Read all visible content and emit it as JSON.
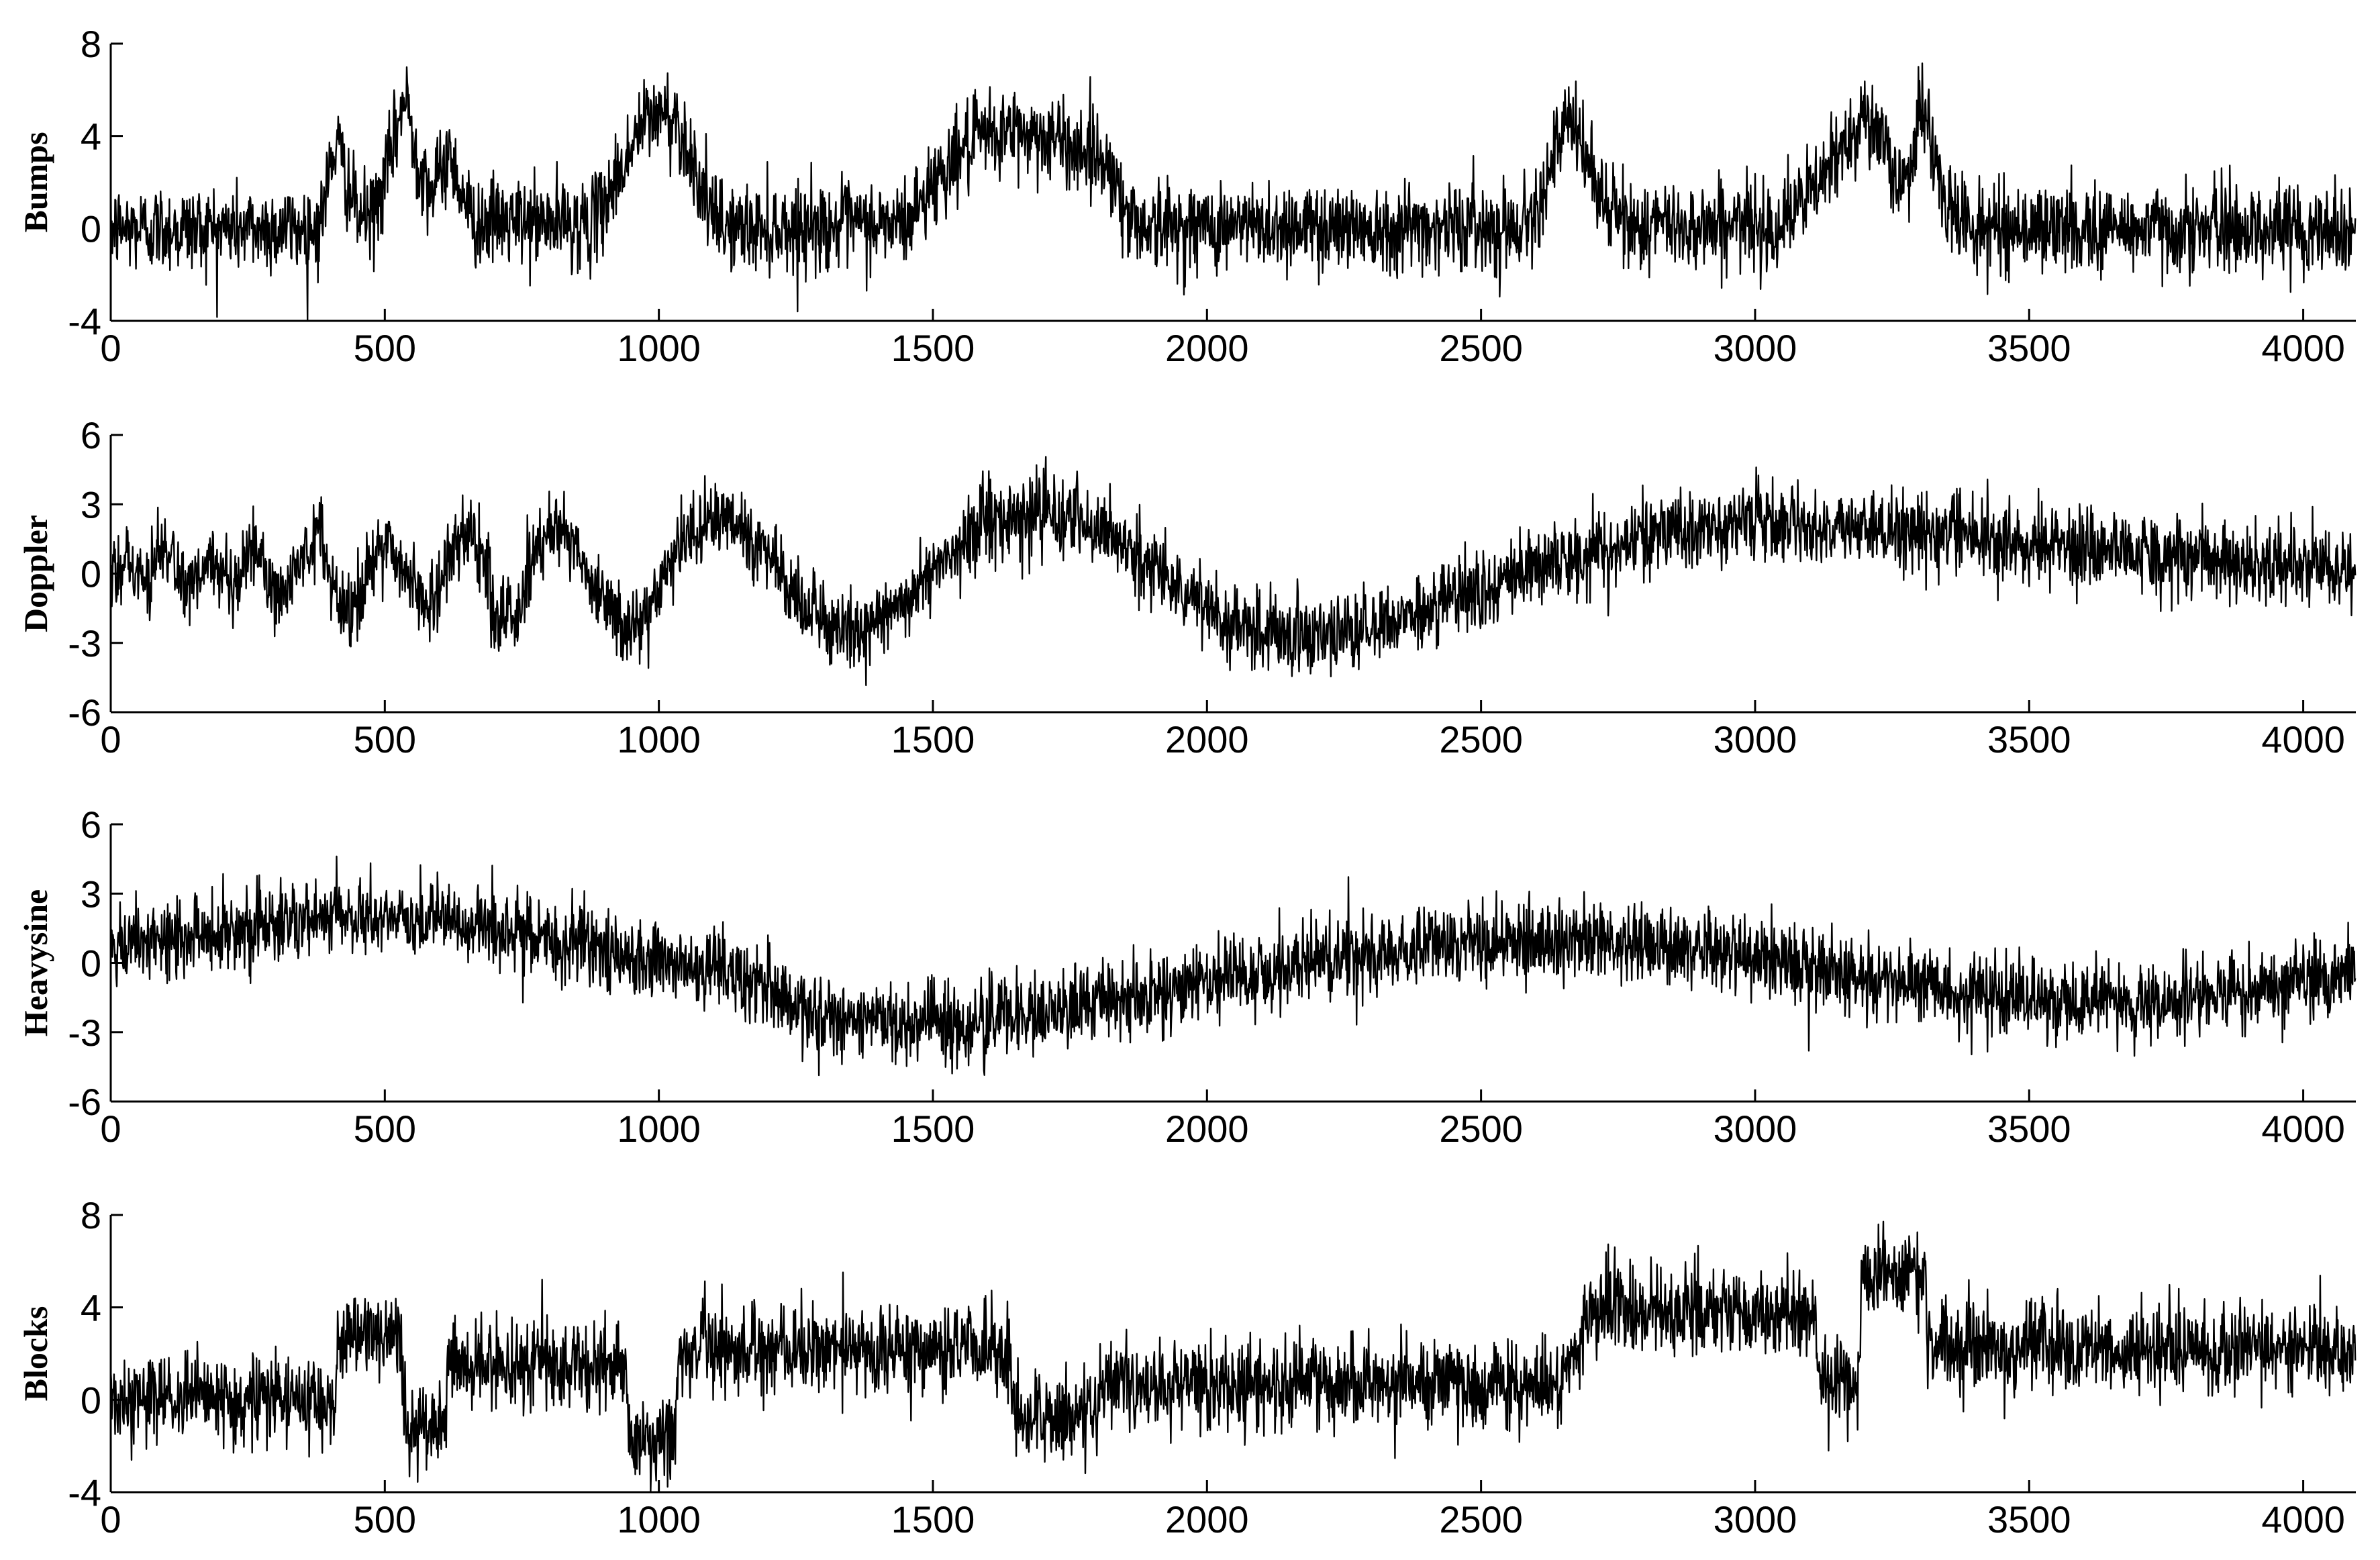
{
  "chart_data": [
    {
      "type": "line",
      "ylabel": "Bumps",
      "xlim": [
        0,
        4096
      ],
      "ylim": [
        -4,
        8
      ],
      "xticks": [
        0,
        500,
        1000,
        1500,
        2000,
        2500,
        3000,
        3500,
        4000
      ],
      "yticks": [
        -4,
        0,
        4,
        8
      ],
      "grid": false,
      "noise_sd": 0.95,
      "series": [
        {
          "x": [
            0,
            380,
            400,
            410,
            420,
            450,
            480,
            510,
            530,
            540,
            560,
            590,
            610,
            620,
            630,
            660,
            880,
            930,
            970,
            1000,
            1030,
            1060,
            1100,
            1150,
            1450,
            1500,
            1550,
            1600,
            1650,
            1700,
            1750,
            1800,
            1830,
            1850,
            1900,
            2580,
            2620,
            2650,
            2665,
            2690,
            2730,
            2780,
            3050,
            3100,
            3150,
            3180,
            3200,
            3220,
            3260,
            3280,
            3300,
            3310,
            3320,
            3340,
            3400,
            4096
          ],
          "y": [
            0,
            0,
            2.5,
            3.8,
            3,
            0.5,
            0.5,
            3,
            5.2,
            5.5,
            3,
            1.5,
            3,
            3.2,
            2.4,
            0.3,
            0.2,
            2.5,
            4.5,
            5,
            4.8,
            3,
            0.3,
            0,
            0.2,
            2,
            3.3,
            4,
            4.2,
            4,
            3.6,
            3.2,
            2.5,
            0.5,
            0.1,
            0.1,
            2.2,
            4.2,
            4.5,
            3.2,
            0.8,
            0.1,
            0.2,
            1.5,
            3,
            4.5,
            5,
            4.2,
            2,
            2.5,
            4.8,
            5,
            4.2,
            1.2,
            0,
            0
          ]
        }
      ]
    },
    {
      "type": "line",
      "ylabel": "Doppler",
      "xlim": [
        0,
        4096
      ],
      "ylim": [
        -6,
        6
      ],
      "xticks": [
        0,
        500,
        1000,
        1500,
        2000,
        2500,
        3000,
        3500,
        4000
      ],
      "yticks": [
        -6,
        -3,
        0,
        3,
        6
      ],
      "grid": false,
      "noise_sd": 0.85,
      "series": [
        {
          "x": [
            0,
            30,
            60,
            100,
            140,
            180,
            220,
            260,
            300,
            340,
            380,
            420,
            460,
            500,
            540,
            580,
            620,
            660,
            700,
            740,
            780,
            820,
            860,
            900,
            940,
            980,
            1020,
            1060,
            1100,
            1140,
            1180,
            1220,
            1260,
            1300,
            1340,
            1380,
            1420,
            1460,
            1500,
            1550,
            1600,
            1650,
            1700,
            1750,
            1800,
            1850,
            1900,
            1950,
            2000,
            2050,
            2100,
            2150,
            2200,
            2250,
            2300,
            2350,
            2400,
            2450,
            2500,
            2550,
            2600,
            2650,
            2700,
            2750,
            2800,
            2850,
            2900,
            2950,
            3000,
            3050,
            3100,
            3150,
            3200,
            3250,
            3300,
            3400,
            3500,
            3600,
            3700,
            3800,
            3900,
            4000,
            4096
          ],
          "y": [
            0,
            0.8,
            -0.5,
            1.2,
            -0.8,
            0.5,
            -1.2,
            1.5,
            -1.3,
            0.2,
            1.8,
            -1.5,
            -1,
            1.8,
            -0.2,
            -1.5,
            1,
            1.8,
            -1.5,
            -2,
            1.5,
            2.2,
            0.5,
            -1.2,
            -2.2,
            -1.8,
            0.2,
            1.8,
            2.3,
            2.2,
            1.3,
            0,
            -1.2,
            -2.2,
            -2.7,
            -2.5,
            -1.8,
            -0.8,
            0.3,
            1.2,
            2,
            2.5,
            2.6,
            2.4,
            2,
            1.2,
            0.3,
            -0.6,
            -1.5,
            -2.1,
            -2.5,
            -2.7,
            -2.8,
            -2.6,
            -2.3,
            -2,
            -1.6,
            -1.2,
            -0.7,
            -0.3,
            0.2,
            0.6,
            1,
            1.3,
            1.6,
            1.8,
            2,
            2.1,
            2.1,
            2.1,
            2.1,
            2.1,
            2,
            2,
            1.9,
            1.6,
            1.3,
            1,
            0.8,
            0.6,
            0.4,
            0.2,
            0
          ]
        }
      ]
    },
    {
      "type": "line",
      "ylabel": "Heavysine",
      "xlim": [
        0,
        4096
      ],
      "ylim": [
        -6,
        6
      ],
      "xticks": [
        0,
        500,
        1000,
        1500,
        2000,
        2500,
        3000,
        3500,
        4000
      ],
      "yticks": [
        -6,
        -3,
        0,
        3,
        6
      ],
      "grid": false,
      "noise_sd": 0.85,
      "series": [
        {
          "x": [
            0,
            100,
            200,
            300,
            400,
            500,
            600,
            700,
            800,
            900,
            1000,
            1100,
            1200,
            1220,
            1250,
            1300,
            1400,
            1500,
            1600,
            1700,
            1800,
            1900,
            2000,
            2100,
            2200,
            2300,
            2400,
            2500,
            2600,
            2700,
            2800,
            2900,
            3000,
            3100,
            3200,
            3300,
            3400,
            3500,
            3600,
            3700,
            3800,
            3900,
            4000,
            4096
          ],
          "y": [
            0.4,
            1,
            1.4,
            1.7,
            1.9,
            2,
            1.8,
            1.4,
            1,
            0.6,
            0.2,
            -0.3,
            -1,
            -1.6,
            -2,
            -2.4,
            -2.6,
            -2.7,
            -2.5,
            -2.2,
            -1.8,
            -1.3,
            -0.9,
            -0.5,
            0,
            0.4,
            0.7,
            0.9,
            1,
            1,
            0.9,
            0.6,
            0.2,
            -0.2,
            -0.6,
            -1,
            -1.3,
            -1.6,
            -1.7,
            -1.7,
            -1.5,
            -1.2,
            -0.8,
            -0.3
          ]
        }
      ]
    },
    {
      "type": "line",
      "ylabel": "Blocks",
      "xlim": [
        0,
        4096
      ],
      "ylim": [
        -4,
        8
      ],
      "xticks": [
        0,
        500,
        1000,
        1500,
        2000,
        2500,
        3000,
        3500,
        4000
      ],
      "yticks": [
        -4,
        0,
        4,
        8
      ],
      "grid": false,
      "noise_sd": 0.95,
      "series": [
        {
          "x": [
            0,
            410,
            415,
            530,
            535,
            610,
            615,
            940,
            945,
            1030,
            1035,
            1640,
            1645,
            1800,
            1805,
            2650,
            2655,
            2680,
            2685,
            3110,
            3115,
            3190,
            3195,
            3310,
            3315,
            4096
          ],
          "y": [
            0,
            0,
            2.8,
            2.8,
            -1.2,
            -1.2,
            1.5,
            1.5,
            -1.8,
            -1.8,
            2.2,
            2.2,
            -0.8,
            -0.8,
            0.7,
            0.7,
            2,
            2,
            3.8,
            3.8,
            0.8,
            0.8,
            5.5,
            5.5,
            2.2,
            2.2
          ]
        }
      ]
    }
  ]
}
